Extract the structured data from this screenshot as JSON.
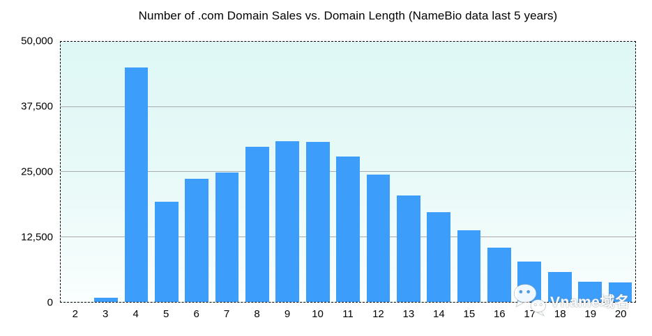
{
  "page": {
    "background": "#FFFFFF"
  },
  "chart_data": {
    "type": "bar",
    "title": "Number of .com Domain Sales vs. Domain Length (NameBio data last 5 years)",
    "xlabel": "",
    "ylabel": "",
    "categories": [
      "2",
      "3",
      "4",
      "5",
      "6",
      "7",
      "8",
      "9",
      "10",
      "11",
      "12",
      "13",
      "14",
      "15",
      "16",
      "17",
      "18",
      "19",
      "20"
    ],
    "values": [
      0,
      800,
      45100,
      19300,
      23700,
      24900,
      29800,
      30900,
      30700,
      27900,
      24500,
      20500,
      17200,
      13800,
      10400,
      7800,
      5800,
      3900,
      3700
    ],
    "ylim": [
      0,
      50000
    ],
    "yticks": [
      {
        "label": "0",
        "value": 0,
        "grid": false
      },
      {
        "label": "12,500",
        "value": 12500,
        "grid": true
      },
      {
        "label": "25,000",
        "value": 25000,
        "grid": true
      },
      {
        "label": "37,500",
        "value": 37500,
        "grid": true
      },
      {
        "label": "50,000",
        "value": 50000,
        "grid": false
      }
    ],
    "grid": "horizontal",
    "legend_position": "none",
    "bar_color": "#3C9DFB",
    "gridline_color": "#ABABAB",
    "border_color": "#000000",
    "border_style": "dashed",
    "plot_bg_top": "#DEF7F5",
    "plot_bg_mid": "#E9FAF8",
    "plot_bg_bottom": "#FAFEFE"
  },
  "watermark": {
    "icon": "wechat-icon",
    "text": "Vname域名",
    "color": "#FFFFFF"
  }
}
